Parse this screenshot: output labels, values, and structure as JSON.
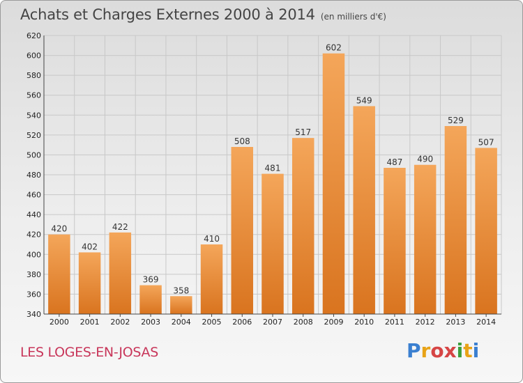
{
  "header": {
    "title": "Achats et Charges Externes 2000 à 2014",
    "subtitle": "(en milliers d'€)"
  },
  "footer": {
    "commune": "LES LOGES-EN-JOSAS",
    "logo_letters": [
      "P",
      "r",
      "o",
      "x",
      "i",
      "t",
      "i"
    ]
  },
  "colors": {
    "bar_top": "#f4a65a",
    "bar_bottom": "#d9741f",
    "grid": "#c8c8c8",
    "commune": "#c8365a"
  },
  "chart_data": {
    "type": "bar",
    "categories": [
      "2000",
      "2001",
      "2002",
      "2003",
      "2004",
      "2005",
      "2006",
      "2007",
      "2008",
      "2009",
      "2010",
      "2011",
      "2012",
      "2013",
      "2014"
    ],
    "values": [
      420,
      402,
      422,
      369,
      358,
      410,
      508,
      481,
      517,
      602,
      549,
      487,
      490,
      529,
      507
    ],
    "title": "Achats et Charges Externes 2000 à 2014",
    "subtitle": "(en milliers d'€)",
    "xlabel": "",
    "ylabel": "",
    "ylim": [
      340,
      620
    ],
    "yticks": [
      340,
      360,
      380,
      400,
      420,
      440,
      460,
      480,
      500,
      520,
      540,
      560,
      580,
      600,
      620
    ],
    "grid": true,
    "data_labels": true
  }
}
